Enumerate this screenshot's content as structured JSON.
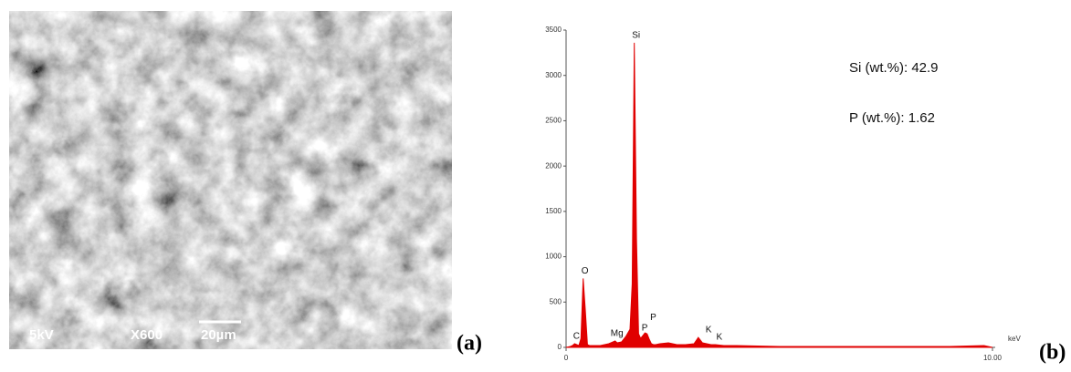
{
  "sem_image": {
    "labels": [
      "5kV",
      "X600",
      "20µm"
    ]
  },
  "panel_labels": [
    "(a)",
    "(b)"
  ],
  "chart_data": {
    "type": "area",
    "x": [
      0,
      0.1,
      0.15,
      0.2,
      0.25,
      0.3,
      0.35,
      0.4,
      0.45,
      0.5,
      0.55,
      0.6,
      0.8,
      1.0,
      1.1,
      1.15,
      1.2,
      1.3,
      1.4,
      1.5,
      1.55,
      1.6,
      1.65,
      1.7,
      1.75,
      1.8,
      1.85,
      1.9,
      1.95,
      2.0,
      2.05,
      2.1,
      2.2,
      2.4,
      2.6,
      2.8,
      3.0,
      3.1,
      3.2,
      3.3,
      3.4,
      3.5,
      3.7,
      4.0,
      5.0,
      6.0,
      7.0,
      8.0,
      9.0,
      9.8,
      9.9,
      10.0
    ],
    "values": [
      0,
      10,
      20,
      40,
      30,
      20,
      100,
      760,
      420,
      30,
      20,
      20,
      20,
      40,
      60,
      70,
      50,
      60,
      120,
      200,
      700,
      3360,
      1200,
      150,
      100,
      130,
      160,
      150,
      90,
      40,
      30,
      30,
      40,
      50,
      30,
      30,
      40,
      110,
      50,
      40,
      30,
      30,
      20,
      20,
      10,
      10,
      10,
      10,
      10,
      20,
      10,
      0
    ],
    "color": "#e00000",
    "xlim": [
      0,
      10
    ],
    "ylim": [
      0,
      3500
    ],
    "xticks": [
      0,
      {
        "value": 10,
        "label": "10.00"
      }
    ],
    "yticks": [
      0,
      500,
      1000,
      1500,
      2000,
      2500,
      3000,
      3500
    ],
    "x_label": "keV",
    "peak_labels": [
      {
        "label": "C",
        "x": 0.2,
        "y": 40
      },
      {
        "label": "O",
        "x": 0.4,
        "y": 760
      },
      {
        "label": "Mg",
        "x": 1.15,
        "y": 70
      },
      {
        "label": "Si",
        "x": 1.6,
        "y": 3360
      },
      {
        "label": "P",
        "x": 1.8,
        "y": 130
      },
      {
        "label": "P",
        "x": 2.0,
        "y": 250
      },
      {
        "label": "K",
        "x": 3.3,
        "y": 110
      },
      {
        "label": "K",
        "x": 3.55,
        "y": 30
      }
    ],
    "annotations": [
      "Si (wt.%): 42.9",
      "P (wt.%): 1.62"
    ]
  }
}
